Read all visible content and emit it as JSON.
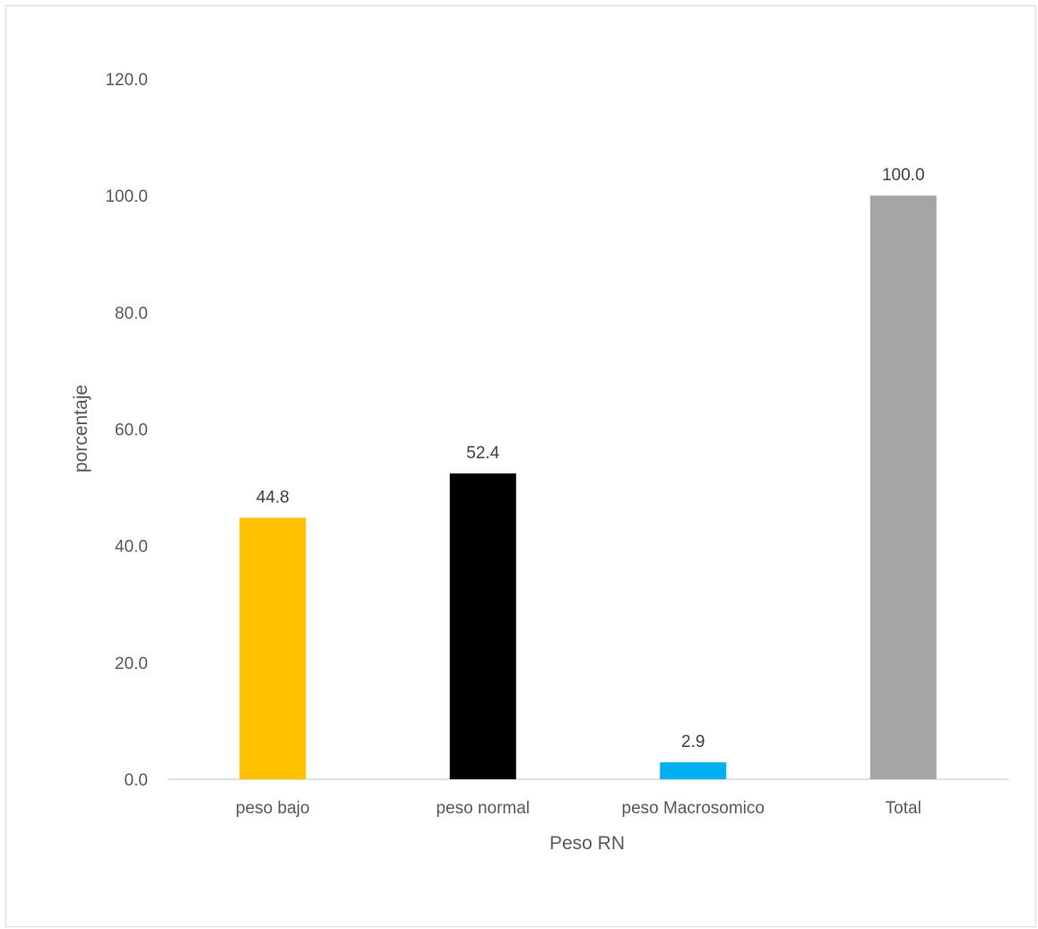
{
  "chart_data": {
    "type": "bar",
    "categories": [
      "peso bajo",
      "peso normal",
      "peso Macrosomico",
      "Total"
    ],
    "values": [
      44.8,
      52.4,
      2.9,
      100.0
    ],
    "data_labels": [
      "44.8",
      "52.4",
      "2.9",
      "100.0"
    ],
    "bar_colors": [
      "#FFC000",
      "#000000",
      "#00B0F0",
      "#A5A5A5"
    ],
    "xlabel": "Peso RN",
    "ylabel": "porcentaje",
    "ylim": [
      0,
      120
    ],
    "y_ticks": [
      0,
      20,
      40,
      60,
      80,
      100,
      120
    ],
    "y_tick_labels": [
      "0.0",
      "20.0",
      "40.0",
      "60.0",
      "80.0",
      "100.0",
      "120.0"
    ],
    "grid": false,
    "legend": "none"
  }
}
